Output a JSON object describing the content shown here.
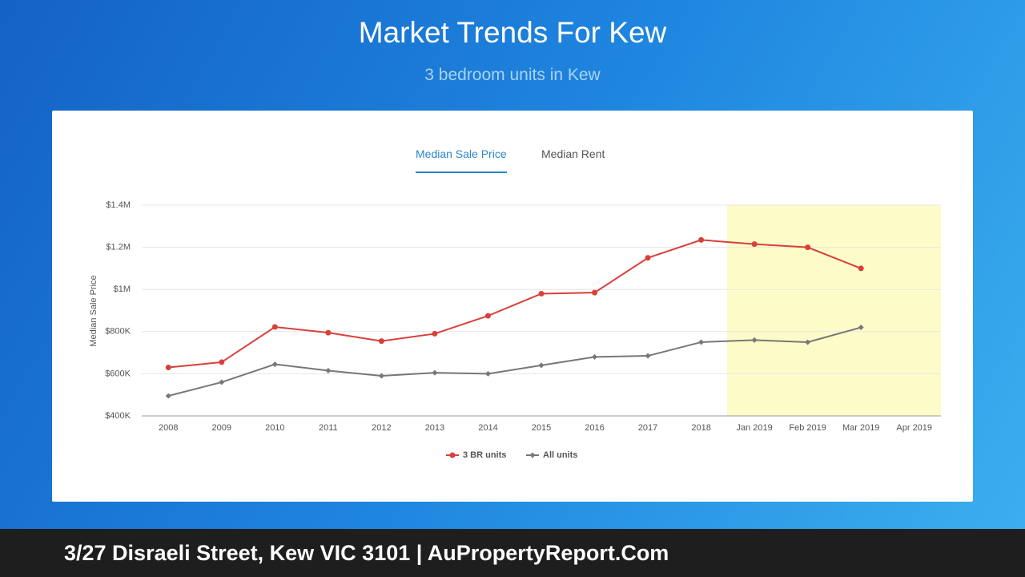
{
  "page_title": "Market Trends For Kew",
  "page_subtitle": "3 bedroom units in Kew",
  "tabs": [
    "Median Sale Price",
    "Median Rent"
  ],
  "footer": "3/27 Disraeli Street, Kew VIC 3101 | AuPropertyReport.Com",
  "chart_data": {
    "type": "line",
    "y_label": "Median Sale Price",
    "categories": [
      "2008",
      "2009",
      "2010",
      "2011",
      "2012",
      "2013",
      "2014",
      "2015",
      "2016",
      "2017",
      "2018",
      "Jan 2019",
      "Feb 2019",
      "Mar 2019",
      "Apr 2019"
    ],
    "series": [
      {
        "name": "3 BR units",
        "color": "#d9403a",
        "marker": "circle",
        "values": [
          630000,
          655000,
          822000,
          795000,
          755000,
          790000,
          875000,
          980000,
          985000,
          1150000,
          1235000,
          1215000,
          1200000,
          1100000,
          null
        ]
      },
      {
        "name": "All units",
        "color": "#777777",
        "marker": "diamond",
        "values": [
          495000,
          560000,
          645000,
          615000,
          590000,
          605000,
          600000,
          640000,
          680000,
          685000,
          750000,
          760000,
          750000,
          820000,
          null
        ]
      }
    ],
    "ylim": [
      400000,
      1400000
    ],
    "yticks": [
      {
        "value": 400000,
        "label": "$400K"
      },
      {
        "value": 600000,
        "label": "$600K"
      },
      {
        "value": 800000,
        "label": "$800K"
      },
      {
        "value": 1000000,
        "label": "$1M"
      },
      {
        "value": 1200000,
        "label": "$1.2M"
      },
      {
        "value": 1400000,
        "label": "$1.4M"
      }
    ],
    "grid": true,
    "legend": "bottom"
  }
}
